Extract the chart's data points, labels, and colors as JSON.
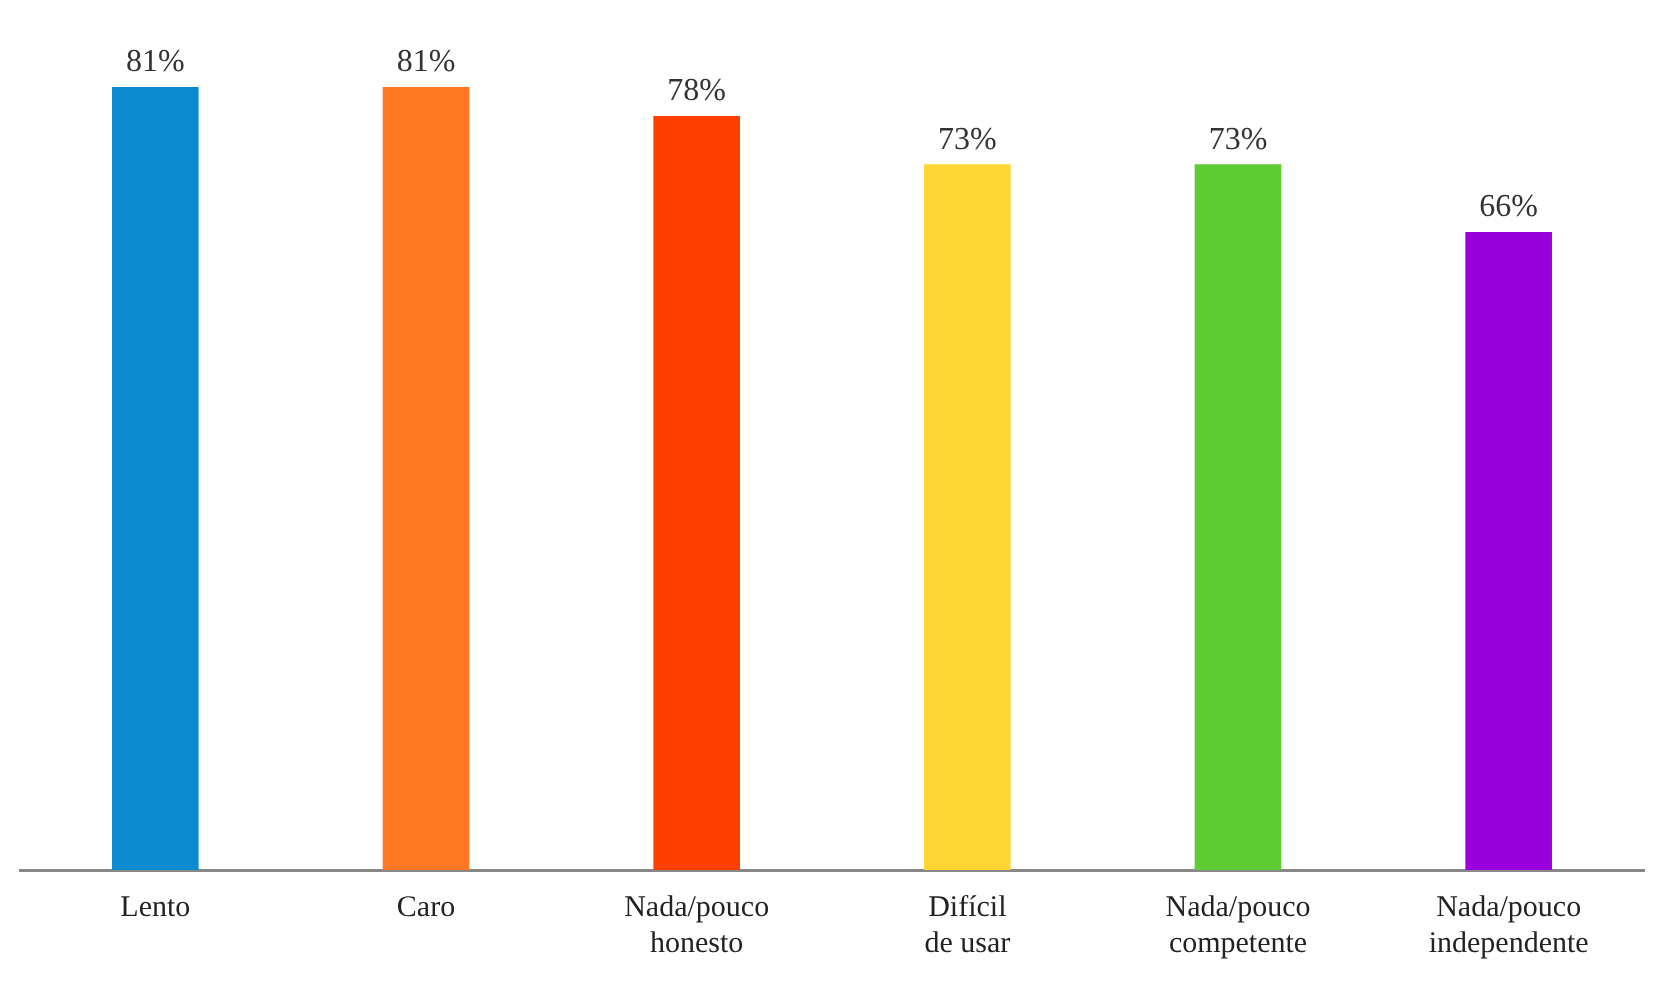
{
  "chart_data": {
    "type": "bar",
    "categories": [
      "Lento",
      "Caro",
      "Nada/pouco honesto",
      "Difícil de usar",
      "Nada/pouco competente",
      "Nada/pouco independente"
    ],
    "values": [
      81,
      81,
      78,
      73,
      73,
      66
    ],
    "colors": [
      "#0a8bd0",
      "#ff7722",
      "#ff3f00",
      "#ffd633",
      "#5dcc33",
      "#9a00dd"
    ],
    "value_labels": [
      "81%",
      "81%",
      "78%",
      "73%",
      "73%",
      "66%"
    ],
    "grid": false,
    "legend": false
  }
}
